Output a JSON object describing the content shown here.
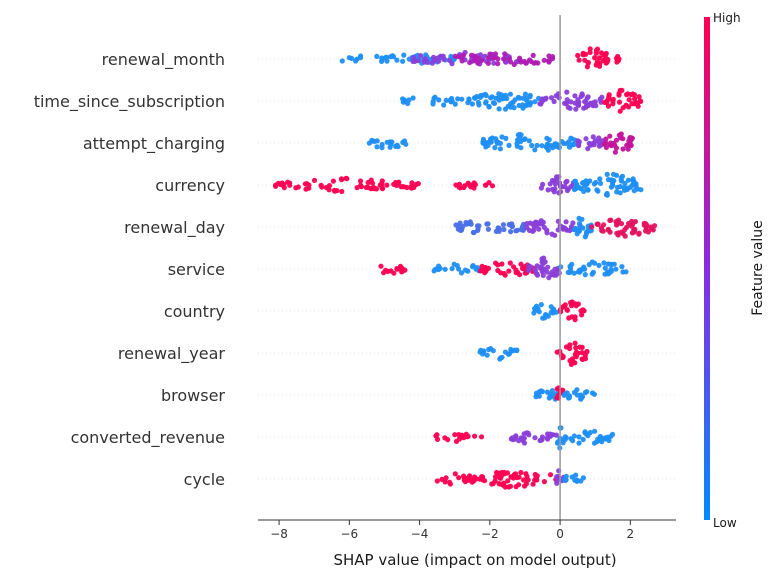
{
  "chart_data": {
    "type": "scatter",
    "subtype": "shap-beeswarm",
    "xlabel": "SHAP value (impact on model output)",
    "xlim": [
      -8.6,
      3.3
    ],
    "xticks": [
      -8,
      -6,
      -4,
      -2,
      0,
      2
    ],
    "xtick_labels": [
      "−8",
      "−6",
      "−4",
      "−2",
      "0",
      "2"
    ],
    "colorbar": {
      "title": "Feature value",
      "high_label": "High",
      "low_label": "Low",
      "high_color": "#ff0052",
      "low_color": "#008bfb",
      "mid_color": "#8a2be2"
    },
    "grid": false,
    "features": [
      {
        "name": "renewal_month",
        "clusters": [
          {
            "x": [
              -6.2,
              -2.8
            ],
            "color": "#1f8ff5",
            "density": 0.4
          },
          {
            "x": [
              -4.2,
              -1.2
            ],
            "color": "#8a3fd8",
            "density": 0.5
          },
          {
            "x": [
              -3.0,
              -0.2
            ],
            "color": "#b01cb3",
            "density": 0.5
          },
          {
            "x": [
              0.5,
              1.4
            ],
            "color": "#ff0052",
            "density": 1.0
          },
          {
            "x": [
              1.4,
              1.7
            ],
            "color": "#ff0052",
            "density": 0.3
          }
        ]
      },
      {
        "name": "time_since_subscription",
        "clusters": [
          {
            "x": [
              -4.6,
              -2.5
            ],
            "color": "#1f8ff5",
            "density": 0.3
          },
          {
            "x": [
              -2.5,
              -0.6
            ],
            "color": "#1f8ff5",
            "density": 0.9
          },
          {
            "x": [
              -0.6,
              1.2
            ],
            "color": "#8a3fd8",
            "density": 0.8
          },
          {
            "x": [
              1.2,
              2.3
            ],
            "color": "#ff0052",
            "density": 0.9
          }
        ]
      },
      {
        "name": "attempt_charging",
        "clusters": [
          {
            "x": [
              -5.5,
              -4.3
            ],
            "color": "#1f8ff5",
            "density": 0.4
          },
          {
            "x": [
              -2.2,
              0.5
            ],
            "color": "#1f8ff5",
            "density": 0.8
          },
          {
            "x": [
              0.5,
              1.2
            ],
            "color": "#8a3fd8",
            "density": 0.7
          },
          {
            "x": [
              1.2,
              2.1
            ],
            "color": "#c2149a",
            "density": 0.9
          }
        ]
      },
      {
        "name": "currency",
        "clusters": [
          {
            "x": [
              -8.1,
              -4.0
            ],
            "color": "#ff0052",
            "density": 0.5
          },
          {
            "x": [
              -3.0,
              -1.9
            ],
            "color": "#ff0052",
            "density": 0.4
          },
          {
            "x": [
              -0.6,
              0.4
            ],
            "color": "#8a3fd8",
            "density": 0.7
          },
          {
            "x": [
              0.4,
              2.3
            ],
            "color": "#1f8ff5",
            "density": 1.0
          }
        ]
      },
      {
        "name": "renewal_day",
        "clusters": [
          {
            "x": [
              -3.0,
              -1.0
            ],
            "color": "#4a6fe8",
            "density": 0.6
          },
          {
            "x": [
              -1.0,
              0.6
            ],
            "color": "#8a3fd8",
            "density": 0.8
          },
          {
            "x": [
              0.4,
              0.9
            ],
            "color": "#1f8ff5",
            "density": 1.0
          },
          {
            "x": [
              0.9,
              2.8
            ],
            "color": "#e3135f",
            "density": 0.8
          }
        ]
      },
      {
        "name": "service",
        "clusters": [
          {
            "x": [
              -5.2,
              -4.4
            ],
            "color": "#ff0052",
            "density": 0.4
          },
          {
            "x": [
              -3.6,
              -2.3
            ],
            "color": "#1f8ff5",
            "density": 0.4
          },
          {
            "x": [
              -2.3,
              -0.7
            ],
            "color": "#ff0052",
            "density": 0.6
          },
          {
            "x": [
              -0.9,
              0.0
            ],
            "color": "#8a3fd8",
            "density": 1.0
          },
          {
            "x": [
              0.0,
              1.9
            ],
            "color": "#1f8ff5",
            "density": 0.6
          }
        ]
      },
      {
        "name": "country",
        "clusters": [
          {
            "x": [
              -0.9,
              -0.1
            ],
            "color": "#1f8ff5",
            "density": 0.6
          },
          {
            "x": [
              0.0,
              0.7
            ],
            "color": "#ff0052",
            "density": 0.9
          }
        ]
      },
      {
        "name": "renewal_year",
        "clusters": [
          {
            "x": [
              -2.3,
              -1.2
            ],
            "color": "#1f8ff5",
            "density": 0.5
          },
          {
            "x": [
              -0.1,
              0.8
            ],
            "color": "#ff0052",
            "density": 1.0
          }
        ]
      },
      {
        "name": "browser",
        "clusters": [
          {
            "x": [
              -0.7,
              0.0
            ],
            "color": "#1f8ff5",
            "density": 0.6
          },
          {
            "x": [
              -0.1,
              0.1
            ],
            "color": "#ff0052",
            "density": 1.0
          },
          {
            "x": [
              0.1,
              1.0
            ],
            "color": "#1f8ff5",
            "density": 0.5
          }
        ]
      },
      {
        "name": "converted_revenue",
        "clusters": [
          {
            "x": [
              -3.6,
              -2.2
            ],
            "color": "#ff0052",
            "density": 0.3
          },
          {
            "x": [
              -1.4,
              -0.1
            ],
            "color": "#8a3fd8",
            "density": 0.6
          },
          {
            "x": [
              -0.1,
              0.1
            ],
            "color": "#1f8ff5",
            "density": 1.0
          },
          {
            "x": [
              0.1,
              1.5
            ],
            "color": "#1f8ff5",
            "density": 0.6
          }
        ]
      },
      {
        "name": "cycle",
        "clusters": [
          {
            "x": [
              -3.5,
              -2.6
            ],
            "color": "#ff0052",
            "density": 0.4
          },
          {
            "x": [
              -2.6,
              -0.1
            ],
            "color": "#ff0052",
            "density": 0.7
          },
          {
            "x": [
              -0.1,
              0.1
            ],
            "color": "#8a3fd8",
            "density": 1.0
          },
          {
            "x": [
              0.1,
              0.7
            ],
            "color": "#1f8ff5",
            "density": 0.4
          }
        ]
      }
    ]
  }
}
